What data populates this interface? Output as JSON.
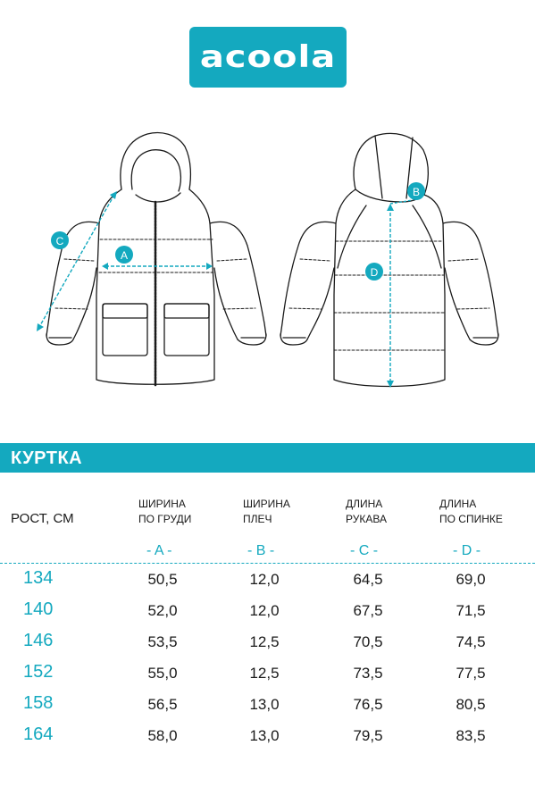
{
  "brand": {
    "logo_text": "acoola",
    "color": "#14a9bf"
  },
  "drawing": {
    "labels": [
      "A",
      "B",
      "C",
      "D"
    ]
  },
  "section": {
    "title": "КУРТКА"
  },
  "table": {
    "row_header": "РОСТ, СМ",
    "columns": [
      {
        "line1": "ШИРИНА",
        "line2": "ПО ГРУДИ",
        "letter": "- A -"
      },
      {
        "line1": "ШИРИНА",
        "line2": "ПЛЕЧ",
        "letter": "- B -"
      },
      {
        "line1": "ДЛИНА",
        "line2": "РУКАВА",
        "letter": "- C -"
      },
      {
        "line1": "ДЛИНА",
        "line2": "ПО СПИНКЕ",
        "letter": "- D -"
      }
    ],
    "rows": [
      {
        "height": "134",
        "values": [
          "50,5",
          "12,0",
          "64,5",
          "69,0"
        ]
      },
      {
        "height": "140",
        "values": [
          "52,0",
          "12,0",
          "67,5",
          "71,5"
        ]
      },
      {
        "height": "146",
        "values": [
          "53,5",
          "12,5",
          "70,5",
          "74,5"
        ]
      },
      {
        "height": "152",
        "values": [
          "55,0",
          "12,5",
          "73,5",
          "77,5"
        ]
      },
      {
        "height": "158",
        "values": [
          "56,5",
          "13,0",
          "76,5",
          "80,5"
        ]
      },
      {
        "height": "164",
        "values": [
          "58,0",
          "13,0",
          "79,5",
          "83,5"
        ]
      }
    ]
  }
}
